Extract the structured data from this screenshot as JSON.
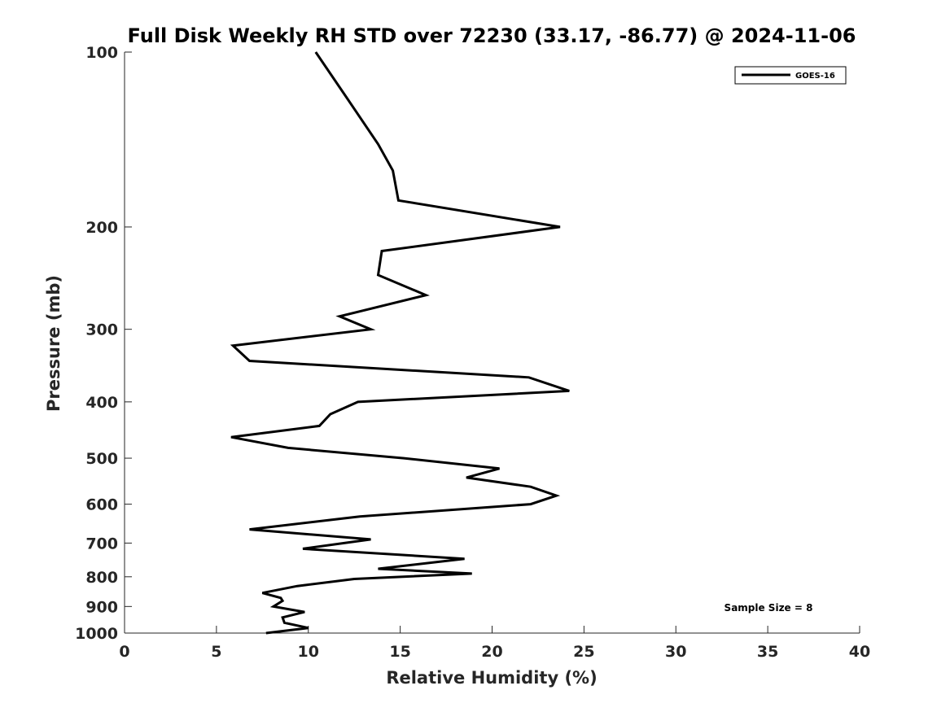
{
  "chart_data": {
    "type": "line",
    "title": "Full Disk Weekly RH STD over 72230 (33.17, -86.77) @ 2024-11-06",
    "xlabel": "Relative Humidity (%)",
    "ylabel": "Pressure (mb)",
    "xlim": [
      0,
      40
    ],
    "ylim": [
      1000,
      100
    ],
    "yscale": "log",
    "y_inverted": true,
    "grid": false,
    "legend_position": "top-right",
    "x_ticks": [
      "0",
      "5",
      "10",
      "15",
      "20",
      "25",
      "30",
      "35",
      "40"
    ],
    "y_ticks": [
      "100",
      "200",
      "300",
      "400",
      "500",
      "600",
      "700",
      "800",
      "900",
      "1000"
    ],
    "series": [
      {
        "name": "GOES-16",
        "color": "#000000",
        "x": [
          10.4,
          12.1,
          13.8,
          14.6,
          14.9,
          23.7,
          14.0,
          13.8,
          16.4,
          11.7,
          13.4,
          5.9,
          6.8,
          22.0,
          24.2,
          12.7,
          11.2,
          10.6,
          5.8,
          8.9,
          15.2,
          20.4,
          18.6,
          22.1,
          23.5,
          22.1,
          12.8,
          6.8,
          13.4,
          9.7,
          18.5,
          13.8,
          18.9,
          12.5,
          9.4,
          7.5,
          8.5,
          8.6,
          8.1,
          9.8,
          8.6,
          8.7,
          10.0,
          7.7
        ],
        "y": [
          100,
          120,
          144,
          160,
          180,
          200,
          220,
          242,
          262,
          285,
          300,
          320,
          340,
          363,
          383,
          400,
          420,
          440,
          460,
          480,
          500,
          521,
          540,
          560,
          580,
          600,
          630,
          663,
          690,
          716,
          745,
          775,
          790,
          807,
          830,
          853,
          870,
          880,
          900,
          920,
          940,
          960,
          980,
          1000
        ]
      }
    ],
    "annotations": [
      "Sample Size = 8"
    ]
  }
}
